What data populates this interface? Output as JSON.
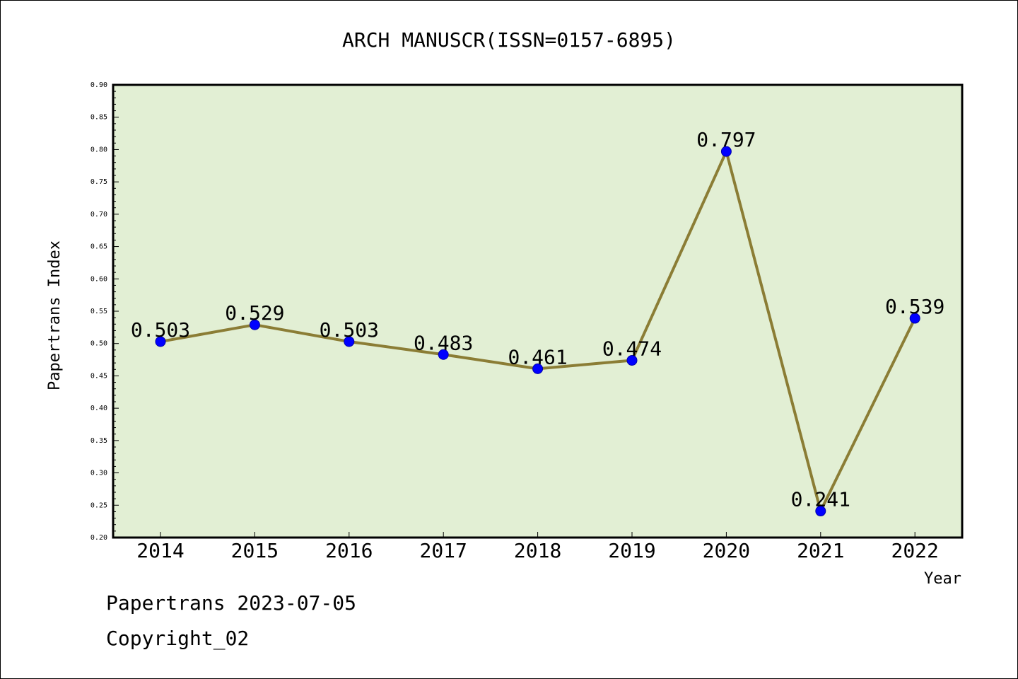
{
  "chart_data": {
    "type": "line",
    "title": "ARCH MANUSCR(ISSN=0157-6895)",
    "xlabel": "Year",
    "ylabel": "Papertrans Index",
    "categories": [
      "2014",
      "2015",
      "2016",
      "2017",
      "2018",
      "2019",
      "2020",
      "2021",
      "2022"
    ],
    "values": [
      0.503,
      0.529,
      0.503,
      0.483,
      0.461,
      0.474,
      0.797,
      0.241,
      0.539
    ],
    "data_labels": [
      "0.503",
      "0.529",
      "0.503",
      "0.483",
      "0.461",
      "0.474",
      "0.797",
      "0.241",
      "0.539"
    ],
    "ylim": [
      0.2,
      0.9
    ],
    "yticks": [
      "0.20",
      "0.25",
      "0.30",
      "0.35",
      "0.40",
      "0.45",
      "0.50",
      "0.55",
      "0.60",
      "0.65",
      "0.70",
      "0.75",
      "0.80",
      "0.85",
      "0.90"
    ],
    "grid": false,
    "legend": "none",
    "colors": {
      "plot_background": "#e2efd4",
      "line": "#8b7d35",
      "marker": "#0000ff"
    }
  },
  "footer": {
    "line1": "Papertrans 2023-07-05",
    "line2": "Copyright_02"
  }
}
